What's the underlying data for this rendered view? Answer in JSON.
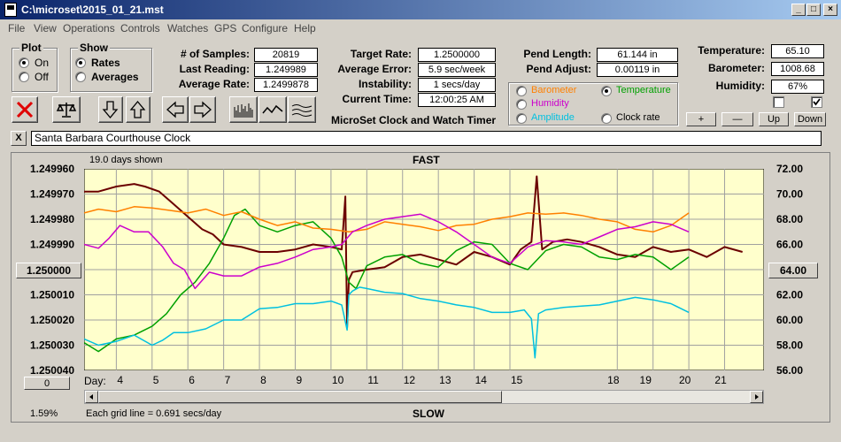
{
  "window": {
    "title": "C:\\microset\\2015_01_21.mst"
  },
  "menu": [
    "File",
    "View",
    "Operations",
    "Controls",
    "Watches",
    "GPS",
    "Configure",
    "Help"
  ],
  "plot_group": {
    "legend": "Plot",
    "on": "On",
    "off": "Off",
    "selected": "On"
  },
  "show_group": {
    "legend": "Show",
    "rates": "Rates",
    "averages": "Averages",
    "selected": "Rates"
  },
  "stats": {
    "samples_label": "# of Samples:",
    "samples": "20819",
    "last_label": "Last Reading:",
    "last": "1.249989",
    "avg_rate_label": "Average Rate:",
    "avg_rate": "1.2499878",
    "target_label": "Target Rate:",
    "target": "1.2500000",
    "avg_err_label": "Average Error:",
    "avg_err": "5.9 sec/week",
    "instab_label": "Instability:",
    "instab": "1 secs/day",
    "time_label": "Current Time:",
    "time": "12:00:25 AM",
    "pend_len_label": "Pend Length:",
    "pend_len": "61.144 in",
    "pend_adj_label": "Pend Adjust:",
    "pend_adj": "0.00119 in",
    "temp_label": "Temperature:",
    "temp": "65.10",
    "baro_label": "Barometer:",
    "baro": "1008.68",
    "hum_label": "Humidity:",
    "hum": "67%"
  },
  "app_caption": "MicroSet Clock and Watch Timer",
  "sensor_select": {
    "barometer": "Barometer",
    "temperature": "Temperature",
    "humidity": "Humidity",
    "amplitude": "Amplitude",
    "clock_rate": "Clock rate",
    "selected": "Temperature",
    "colors": {
      "barometer": "#ff8000",
      "temperature": "#00a000",
      "humidity": "#cc00cc",
      "amplitude": "#00c0e0",
      "clock_rate": "#000000"
    }
  },
  "scale_buttons": {
    "plus": "+",
    "minus": "—",
    "up": "Up",
    "down": "Down"
  },
  "clock_name": "Santa Barbara Courthouse Clock",
  "clear_button": "X",
  "chart_data": {
    "type": "line",
    "top_label": "FAST",
    "bottom_label": "SLOW",
    "days_shown": "19.0 days shown",
    "grid_note": "Each grid line = 0.691 secs/day",
    "percent": "1.59%",
    "left_button": "0",
    "left_center": "1.250000",
    "right_center": "64.00",
    "x_label": "Day:",
    "x_ticks": [
      "4",
      "5",
      "6",
      "7",
      "8",
      "9",
      "10",
      "11",
      "12",
      "13",
      "14",
      "15",
      "18",
      "19",
      "20",
      "21"
    ],
    "x_tick_days": [
      4,
      5,
      6,
      7,
      8,
      9,
      10,
      11,
      12,
      13,
      14,
      15,
      18,
      19,
      20,
      21
    ],
    "x_label_days": [
      4,
      5,
      6,
      7,
      8,
      9,
      10,
      11,
      12,
      13,
      14,
      15,
      17.7,
      18.6,
      19.7,
      20.7
    ],
    "xlim": [
      3.1,
      22.1
    ],
    "y_left_ticks": [
      "1.249960",
      "1.249970",
      "1.249980",
      "1.249990",
      "1.250000",
      "1.250010",
      "1.250020",
      "1.250030",
      "1.250040"
    ],
    "y_right_ticks": [
      "72.00",
      "70.00",
      "68.00",
      "66.00",
      "64.00",
      "62.00",
      "60.00",
      "58.00",
      "56.00"
    ],
    "ylim_left": [
      1.24996,
      1.25004
    ],
    "ylim_right": [
      56,
      72
    ],
    "series": [
      {
        "name": "Clock rate",
        "color": "#6b0000",
        "axis": "left",
        "x": [
          3.1,
          3.5,
          4.0,
          4.5,
          4.8,
          5.2,
          5.6,
          6.0,
          6.4,
          6.7,
          7.0,
          7.5,
          8.0,
          8.5,
          9.0,
          9.5,
          10.0,
          10.3,
          10.4,
          10.45,
          10.5,
          10.6,
          11.0,
          11.5,
          12.0,
          12.5,
          13.0,
          13.5,
          14.0,
          14.5,
          15.0,
          15.3,
          15.6,
          15.75,
          15.9,
          16.2,
          16.6,
          17.0,
          17.5,
          18.0,
          18.5,
          19.0,
          19.5,
          20.0,
          20.5,
          21.0,
          21.5
        ],
        "y": [
          1.249969,
          1.249969,
          1.249967,
          1.249966,
          1.249967,
          1.249969,
          1.249974,
          1.249979,
          1.249984,
          1.249986,
          1.24999,
          1.249991,
          1.249993,
          1.249993,
          1.249992,
          1.24999,
          1.249991,
          1.249992,
          1.249971,
          1.250023,
          1.250004,
          1.250001,
          1.25,
          1.249999,
          1.249995,
          1.249994,
          1.249996,
          1.249998,
          1.249993,
          1.249995,
          1.249998,
          1.249992,
          1.249989,
          1.249963,
          1.249992,
          1.249989,
          1.249988,
          1.249989,
          1.249991,
          1.249994,
          1.249995,
          1.249991,
          1.249993,
          1.249992,
          1.249995,
          1.249991,
          1.249993
        ]
      },
      {
        "name": "Temperature",
        "color": "#00a000",
        "axis": "right",
        "x": [
          3.1,
          3.5,
          4.0,
          4.5,
          5.0,
          5.4,
          5.8,
          6.2,
          6.6,
          7.0,
          7.3,
          7.6,
          8.0,
          8.5,
          9.0,
          9.5,
          10.0,
          10.3,
          10.5,
          10.7,
          11.0,
          11.5,
          12.0,
          12.5,
          13.0,
          13.5,
          14.0,
          14.5,
          15.0,
          15.5,
          16.0,
          16.5,
          17.0,
          17.5,
          18.0,
          18.5,
          19.0,
          19.5,
          20.0
        ],
        "y": [
          58.2,
          57.5,
          58.5,
          58.8,
          59.5,
          60.5,
          62.0,
          63.0,
          64.5,
          66.5,
          68.3,
          68.8,
          67.5,
          67.0,
          67.5,
          67.8,
          66.5,
          65.0,
          63.0,
          62.5,
          64.3,
          65.0,
          65.2,
          64.5,
          64.2,
          65.5,
          66.2,
          66.0,
          64.5,
          64.0,
          65.5,
          66.0,
          65.8,
          65.0,
          64.8,
          65.2,
          65.0,
          64.0,
          65.0
        ]
      },
      {
        "name": "Barometer",
        "color": "#ff8000",
        "axis": "right",
        "x": [
          3.1,
          3.5,
          4.0,
          4.5,
          5.0,
          5.5,
          6.0,
          6.5,
          7.0,
          7.5,
          8.0,
          8.5,
          9.0,
          9.5,
          10.0,
          10.5,
          11.0,
          11.5,
          12.0,
          12.5,
          13.0,
          13.5,
          14.0,
          14.5,
          15.0,
          15.5,
          16.0,
          16.5,
          17.0,
          17.5,
          18.0,
          18.5,
          19.0,
          19.5,
          20.0
        ],
        "y": [
          68.5,
          68.8,
          68.6,
          69.0,
          68.9,
          68.7,
          68.5,
          68.8,
          68.3,
          68.6,
          68.0,
          67.5,
          67.8,
          67.3,
          67.2,
          67.0,
          67.2,
          67.8,
          67.6,
          67.4,
          67.1,
          67.5,
          67.6,
          68.0,
          68.2,
          68.5,
          68.4,
          68.5,
          68.3,
          68.0,
          67.8,
          67.2,
          67.0,
          67.5,
          68.5
        ]
      },
      {
        "name": "Humidity",
        "color": "#cc00cc",
        "axis": "right",
        "x": [
          3.1,
          3.5,
          3.8,
          4.1,
          4.5,
          4.9,
          5.3,
          5.6,
          5.9,
          6.2,
          6.6,
          7.0,
          7.5,
          8.0,
          8.5,
          9.0,
          9.5,
          10.0,
          10.3,
          10.6,
          11.0,
          11.5,
          12.0,
          12.5,
          13.0,
          13.5,
          14.0,
          14.5,
          15.0,
          15.5,
          16.0,
          16.5,
          17.0,
          17.5,
          18.0,
          18.5,
          19.0,
          19.5,
          20.0
        ],
        "y": [
          66.0,
          65.7,
          66.5,
          67.5,
          67.0,
          67.0,
          65.8,
          64.5,
          64.0,
          62.5,
          63.8,
          63.5,
          63.5,
          64.2,
          64.5,
          65.0,
          65.6,
          65.8,
          66.0,
          67.0,
          67.5,
          68.0,
          68.2,
          68.4,
          67.8,
          67.0,
          66.0,
          65.0,
          64.5,
          65.8,
          66.3,
          66.2,
          66.0,
          66.6,
          67.2,
          67.4,
          67.8,
          67.6,
          67.0
        ]
      },
      {
        "name": "Amplitude",
        "color": "#00c0e0",
        "axis": "right",
        "x": [
          3.1,
          3.5,
          4.0,
          4.5,
          5.0,
          5.3,
          5.6,
          6.0,
          6.5,
          7.0,
          7.5,
          8.0,
          8.5,
          9.0,
          9.5,
          10.0,
          10.3,
          10.45,
          10.5,
          10.6,
          10.8,
          11.0,
          11.5,
          12.0,
          12.5,
          13.0,
          13.5,
          14.0,
          14.5,
          15.0,
          15.4,
          15.6,
          15.7,
          15.8,
          16.0,
          16.5,
          17.0,
          17.5,
          18.0,
          18.5,
          19.0,
          19.5,
          20.0
        ],
        "y": [
          58.5,
          58.0,
          58.3,
          58.8,
          58.0,
          58.4,
          59.0,
          59.0,
          59.3,
          60.0,
          60.0,
          60.9,
          61.0,
          61.3,
          61.3,
          61.5,
          61.2,
          59.2,
          62.0,
          62.3,
          62.6,
          62.5,
          62.2,
          62.1,
          61.7,
          61.5,
          61.2,
          61.0,
          60.6,
          60.6,
          60.8,
          60.1,
          57.0,
          60.5,
          60.8,
          61.0,
          61.1,
          61.2,
          61.5,
          61.8,
          61.6,
          61.3,
          60.6
        ]
      }
    ]
  }
}
